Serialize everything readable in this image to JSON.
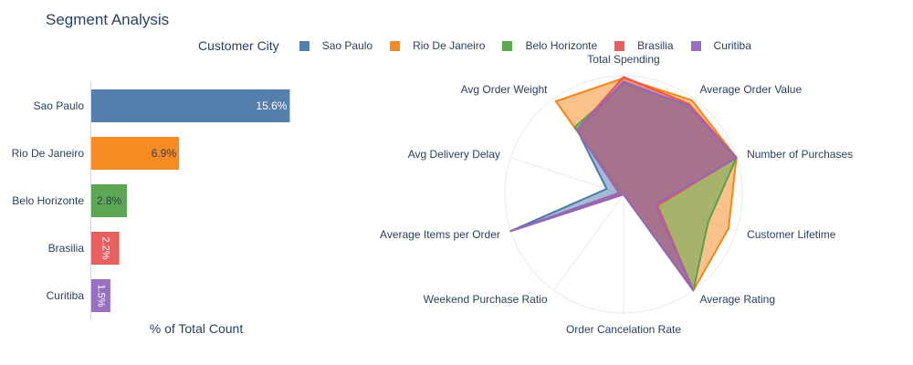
{
  "title": "Segment Analysis",
  "legend": {
    "title": "Customer City",
    "items": [
      {
        "label": "Sao Paulo",
        "color": "#4c78a8"
      },
      {
        "label": "Rio De Janeiro",
        "color": "#f58518"
      },
      {
        "label": "Belo Horizonte",
        "color": "#54a24b"
      },
      {
        "label": "Brasilia",
        "color": "#e45756"
      },
      {
        "label": "Curitiba",
        "color": "#9467bd"
      }
    ]
  },
  "chart_data": [
    {
      "type": "bar",
      "orientation": "horizontal",
      "categories": [
        "Sao Paulo",
        "Rio De Janeiro",
        "Belo Horizonte",
        "Brasilia",
        "Curitiba"
      ],
      "values": [
        15.6,
        6.9,
        2.8,
        2.2,
        1.5
      ],
      "value_labels": [
        "15.6%",
        "6.9%",
        "2.8%",
        "2.2%",
        "1.5%"
      ],
      "colors": [
        "#4c78a8",
        "#f58518",
        "#54a24b",
        "#e45756",
        "#9467bd"
      ],
      "xlabel": "% of Total Count",
      "xlim": [
        0,
        16
      ]
    },
    {
      "type": "radar",
      "axes": [
        "Total Spending",
        "Average Order Value",
        "Number of Purchases",
        "Customer Lifetime",
        "Average Rating",
        "Order Cancelation Rate",
        "Weekend Purchase Ratio",
        "Average Items per Order",
        "Avg Delivery Delay",
        "Avg Order Weight"
      ],
      "range": [
        0,
        1
      ],
      "grid": true,
      "series": [
        {
          "name": "Sao Paulo",
          "color": "#4c78a8",
          "values": [
            0.94,
            0.93,
            1.0,
            0.3,
            1.0,
            0.0,
            0.0,
            1.0,
            0.15,
            0.65
          ]
        },
        {
          "name": "Rio De Janeiro",
          "color": "#f58518",
          "values": [
            0.98,
            0.98,
            1.0,
            0.93,
            1.0,
            0.0,
            0.0,
            1.0,
            0.02,
            0.97
          ]
        },
        {
          "name": "Belo Horizonte",
          "color": "#54a24b",
          "values": [
            0.93,
            0.93,
            1.0,
            0.75,
            1.0,
            0.0,
            0.0,
            1.0,
            0.0,
            0.7
          ]
        },
        {
          "name": "Brasilia",
          "color": "#e45756",
          "values": [
            0.99,
            0.94,
            1.0,
            0.3,
            1.0,
            0.0,
            0.0,
            1.0,
            0.04,
            0.67
          ]
        },
        {
          "name": "Curitiba",
          "color": "#9467bd",
          "values": [
            0.95,
            0.92,
            1.0,
            0.28,
            1.0,
            0.0,
            0.0,
            1.0,
            0.04,
            0.67
          ]
        }
      ]
    }
  ]
}
